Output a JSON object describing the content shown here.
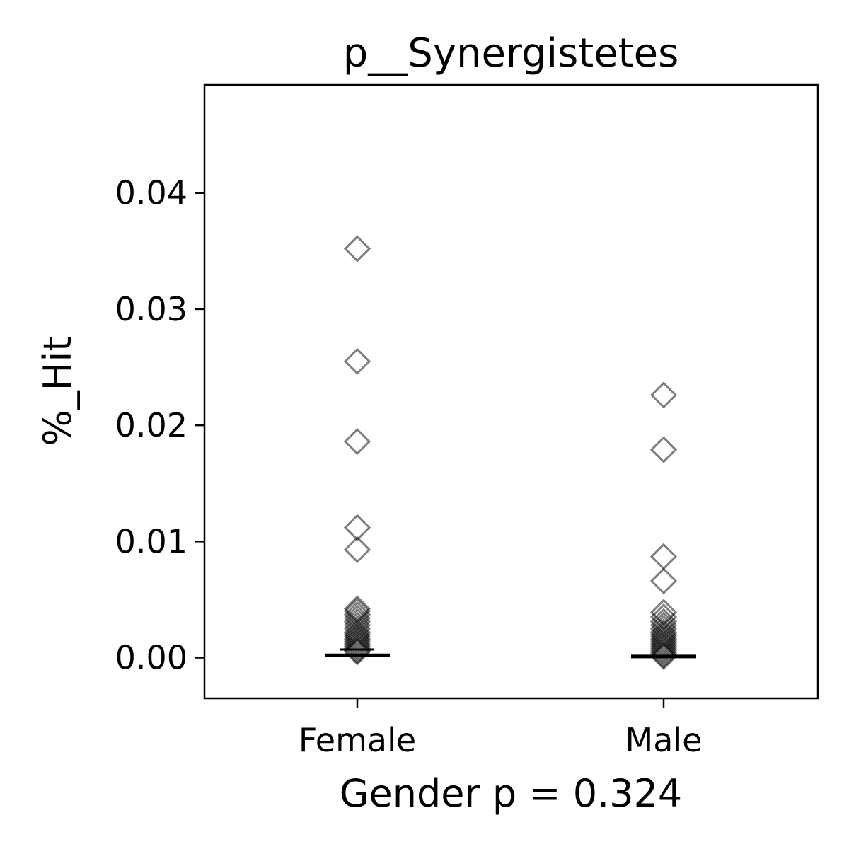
{
  "chart_data": {
    "type": "scatter",
    "title": "p__Synergistetes",
    "xlabel": "Gender p = 0.324",
    "ylabel": "%_Hit",
    "categories": [
      "Female",
      "Male"
    ],
    "yticks": [
      "0.00",
      "0.01",
      "0.02",
      "0.03",
      "0.04"
    ],
    "ylim": [
      -0.0035,
      0.0493
    ],
    "grid": false,
    "marker": "diamond-open",
    "marker_color": "#000000",
    "series": [
      {
        "values": [
          0.0352,
          0.0255,
          0.0186,
          0.0112,
          0.0093,
          0.0042,
          0.004,
          0.0037,
          0.0034,
          0.0031,
          0.0028,
          0.0025,
          0.0022,
          0.002,
          0.0018,
          0.0016,
          0.0014,
          0.0012,
          0.001,
          0.0008,
          0.0006,
          0.0005
        ],
        "median": 0.0002,
        "mean": 0.0007
      },
      {
        "values": [
          0.0226,
          0.0179,
          0.0087,
          0.0066,
          0.0039,
          0.0035,
          0.0031,
          0.0028,
          0.0025,
          0.0022,
          0.002,
          0.0018,
          0.0016,
          0.0014,
          0.0012,
          0.001,
          0.0008,
          0.0006,
          0.0004,
          0.0002,
          0.0001
        ],
        "median": 0.0001
      }
    ]
  }
}
